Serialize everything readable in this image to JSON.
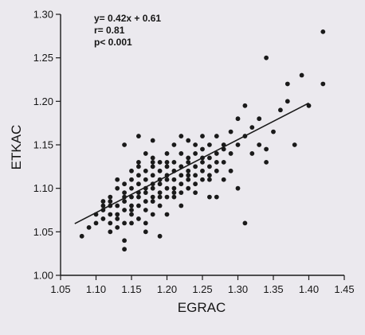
{
  "chart_data": {
    "type": "scatter",
    "xlabel": "EGRAC",
    "ylabel": "ETKAC",
    "xlim": [
      1.05,
      1.45
    ],
    "ylim": [
      1.0,
      1.3
    ],
    "x_ticks": [
      "1.05",
      "1.10",
      "1.15",
      "1.20",
      "1.25",
      "1.30",
      "1.35",
      "1.40",
      "1.45"
    ],
    "y_ticks": [
      "1.00",
      "1.05",
      "1.10",
      "1.15",
      "1.20",
      "1.25",
      "1.30"
    ],
    "annotations": [
      "y= 0.42x + 0.61",
      "r= 0.81",
      "p< 0.001"
    ],
    "regression": {
      "slope": 0.42,
      "intercept": 0.61,
      "x_range": [
        1.07,
        1.4
      ]
    },
    "grid": false,
    "legend": "none",
    "colors": {
      "points": "#1a1a1a",
      "line": "#1a1a1a",
      "axes": "#1a1a1a"
    },
    "points": [
      [
        1.08,
        1.045
      ],
      [
        1.09,
        1.055
      ],
      [
        1.1,
        1.06
      ],
      [
        1.1,
        1.07
      ],
      [
        1.11,
        1.065
      ],
      [
        1.11,
        1.075
      ],
      [
        1.11,
        1.085
      ],
      [
        1.12,
        1.05
      ],
      [
        1.12,
        1.06
      ],
      [
        1.12,
        1.07
      ],
      [
        1.12,
        1.08
      ],
      [
        1.12,
        1.09
      ],
      [
        1.13,
        1.055
      ],
      [
        1.13,
        1.065
      ],
      [
        1.13,
        1.07
      ],
      [
        1.13,
        1.08
      ],
      [
        1.13,
        1.1
      ],
      [
        1.13,
        1.11
      ],
      [
        1.14,
        1.04
      ],
      [
        1.14,
        1.06
      ],
      [
        1.14,
        1.075
      ],
      [
        1.14,
        1.085
      ],
      [
        1.14,
        1.095
      ],
      [
        1.14,
        1.105
      ],
      [
        1.14,
        1.15
      ],
      [
        1.14,
        1.03
      ],
      [
        1.15,
        1.06
      ],
      [
        1.15,
        1.07
      ],
      [
        1.15,
        1.08
      ],
      [
        1.15,
        1.09
      ],
      [
        1.15,
        1.1
      ],
      [
        1.15,
        1.11
      ],
      [
        1.15,
        1.12
      ],
      [
        1.16,
        1.065
      ],
      [
        1.16,
        1.08
      ],
      [
        1.16,
        1.09
      ],
      [
        1.16,
        1.095
      ],
      [
        1.16,
        1.105
      ],
      [
        1.16,
        1.115
      ],
      [
        1.16,
        1.125
      ],
      [
        1.16,
        1.13
      ],
      [
        1.17,
        1.06
      ],
      [
        1.17,
        1.075
      ],
      [
        1.17,
        1.085
      ],
      [
        1.17,
        1.095
      ],
      [
        1.17,
        1.1
      ],
      [
        1.17,
        1.11
      ],
      [
        1.17,
        1.12
      ],
      [
        1.17,
        1.14
      ],
      [
        1.18,
        1.07
      ],
      [
        1.18,
        1.085
      ],
      [
        1.18,
        1.09
      ],
      [
        1.18,
        1.1
      ],
      [
        1.18,
        1.105
      ],
      [
        1.18,
        1.115
      ],
      [
        1.18,
        1.125
      ],
      [
        1.18,
        1.135
      ],
      [
        1.18,
        1.155
      ],
      [
        1.19,
        1.045
      ],
      [
        1.19,
        1.08
      ],
      [
        1.19,
        1.095
      ],
      [
        1.19,
        1.105
      ],
      [
        1.19,
        1.11
      ],
      [
        1.19,
        1.12
      ],
      [
        1.19,
        1.13
      ],
      [
        1.2,
        1.07
      ],
      [
        1.2,
        1.09
      ],
      [
        1.2,
        1.1
      ],
      [
        1.2,
        1.11
      ],
      [
        1.2,
        1.115
      ],
      [
        1.2,
        1.125
      ],
      [
        1.2,
        1.14
      ],
      [
        1.21,
        1.09
      ],
      [
        1.21,
        1.1
      ],
      [
        1.21,
        1.11
      ],
      [
        1.21,
        1.12
      ],
      [
        1.21,
        1.13
      ],
      [
        1.21,
        1.15
      ],
      [
        1.22,
        1.095
      ],
      [
        1.22,
        1.105
      ],
      [
        1.22,
        1.115
      ],
      [
        1.22,
        1.125
      ],
      [
        1.22,
        1.14
      ],
      [
        1.22,
        1.16
      ],
      [
        1.23,
        1.1
      ],
      [
        1.23,
        1.11
      ],
      [
        1.23,
        1.12
      ],
      [
        1.23,
        1.13
      ],
      [
        1.23,
        1.135
      ],
      [
        1.23,
        1.155
      ],
      [
        1.24,
        1.105
      ],
      [
        1.24,
        1.115
      ],
      [
        1.24,
        1.125
      ],
      [
        1.24,
        1.14
      ],
      [
        1.24,
        1.15
      ],
      [
        1.25,
        1.11
      ],
      [
        1.25,
        1.12
      ],
      [
        1.25,
        1.13
      ],
      [
        1.25,
        1.145
      ],
      [
        1.25,
        1.16
      ],
      [
        1.26,
        1.09
      ],
      [
        1.26,
        1.115
      ],
      [
        1.26,
        1.125
      ],
      [
        1.26,
        1.135
      ],
      [
        1.26,
        1.15
      ],
      [
        1.27,
        1.09
      ],
      [
        1.27,
        1.12
      ],
      [
        1.27,
        1.14
      ],
      [
        1.27,
        1.16
      ],
      [
        1.28,
        1.11
      ],
      [
        1.28,
        1.13
      ],
      [
        1.28,
        1.15
      ],
      [
        1.29,
        1.12
      ],
      [
        1.29,
        1.14
      ],
      [
        1.29,
        1.165
      ],
      [
        1.3,
        1.1
      ],
      [
        1.3,
        1.15
      ],
      [
        1.3,
        1.18
      ],
      [
        1.31,
        1.06
      ],
      [
        1.31,
        1.16
      ],
      [
        1.31,
        1.195
      ],
      [
        1.32,
        1.14
      ],
      [
        1.32,
        1.17
      ],
      [
        1.33,
        1.15
      ],
      [
        1.33,
        1.18
      ],
      [
        1.34,
        1.13
      ],
      [
        1.34,
        1.145
      ],
      [
        1.34,
        1.25
      ],
      [
        1.35,
        1.165
      ],
      [
        1.36,
        1.19
      ],
      [
        1.37,
        1.2
      ],
      [
        1.37,
        1.22
      ],
      [
        1.38,
        1.15
      ],
      [
        1.39,
        1.23
      ],
      [
        1.4,
        1.195
      ],
      [
        1.42,
        1.28
      ],
      [
        1.42,
        1.22
      ],
      [
        1.28,
        1.145
      ],
      [
        1.24,
        1.095
      ],
      [
        1.16,
        1.16
      ],
      [
        1.12,
        1.085
      ],
      [
        1.19,
        1.09
      ],
      [
        1.21,
        1.095
      ],
      [
        1.23,
        1.115
      ],
      [
        1.26,
        1.11
      ],
      [
        1.15,
        1.075
      ],
      [
        1.17,
        1.05
      ],
      [
        1.22,
        1.08
      ],
      [
        1.14,
        1.09
      ],
      [
        1.18,
        1.13
      ],
      [
        1.2,
        1.13
      ],
      [
        1.25,
        1.135
      ],
      [
        1.27,
        1.13
      ],
      [
        1.11,
        1.08
      ]
    ]
  }
}
